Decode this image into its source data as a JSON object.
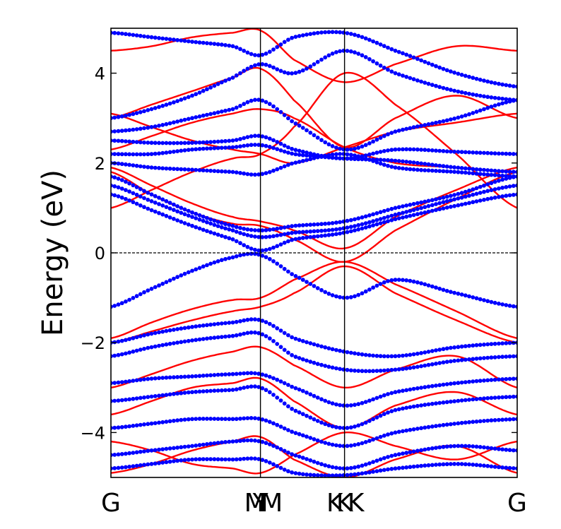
{
  "chart_data": {
    "type": "scatter",
    "title": "",
    "ylabel": "Energy (eV)",
    "xlabel": "",
    "ylim": [
      -5,
      5
    ],
    "xlim": [
      0,
      1
    ],
    "yticks": [
      -4,
      -2,
      0,
      2,
      4
    ],
    "ytick_labels": [
      "−4",
      "−2",
      "0",
      "2",
      "4"
    ],
    "fermi_level": 0,
    "kpath_labels": [
      {
        "text": "G",
        "x": 0.0
      },
      {
        "text": "M",
        "x": 0.355
      },
      {
        "text": "Y",
        "x": 0.368
      },
      {
        "text": "M",
        "x": 0.396
      },
      {
        "text": "K",
        "x": 0.551
      },
      {
        "text": "K",
        "x": 0.575
      },
      {
        "text": "K",
        "x": 0.603
      },
      {
        "text": "G",
        "x": 1.0
      }
    ],
    "high_symmetry_lines": [
      0.368,
      0.575
    ],
    "colors": {
      "series_red": "#ff0000",
      "series_blue": "#0000ff"
    },
    "series": [
      {
        "color": "#ff0000",
        "style": "line",
        "bands": [
          {
            "x": [
              0,
              0.1,
              0.2,
              0.3,
              0.368,
              0.45,
              0.575,
              0.7,
              0.85,
              1.0
            ],
            "y": [
              -1.9,
              -1.55,
              -1.25,
              -1.05,
              -1.0,
              -0.6,
              -0.2,
              -0.7,
              -1.3,
              -1.9
            ]
          },
          {
            "x": [
              0,
              0.1,
              0.2,
              0.3,
              0.368,
              0.45,
              0.575,
              0.7,
              0.85,
              1.0
            ],
            "y": [
              -2.0,
              -1.75,
              -1.5,
              -1.3,
              -1.2,
              -0.9,
              -0.3,
              -0.9,
              -1.5,
              -2.0
            ]
          },
          {
            "x": [
              0,
              0.1,
              0.2,
              0.3,
              0.368,
              0.45,
              0.575,
              0.7,
              0.85,
              1.0
            ],
            "y": [
              1.8,
              1.3,
              0.9,
              0.65,
              0.6,
              0.3,
              -0.2,
              0.5,
              1.2,
              1.8
            ]
          },
          {
            "x": [
              0,
              0.1,
              0.2,
              0.3,
              0.368,
              0.45,
              0.575,
              0.7,
              0.85,
              1.0
            ],
            "y": [
              1.9,
              1.5,
              1.1,
              0.8,
              0.7,
              0.5,
              0.1,
              0.8,
              1.4,
              1.9
            ]
          },
          {
            "x": [
              0,
              0.1,
              0.2,
              0.3,
              0.368,
              0.45,
              0.575,
              0.7,
              0.85,
              1.0
            ],
            "y": [
              3.1,
              2.8,
              2.5,
              2.3,
              2.2,
              2.0,
              2.35,
              2.7,
              2.9,
              3.1
            ]
          },
          {
            "x": [
              0,
              0.1,
              0.2,
              0.3,
              0.368,
              0.45,
              0.575,
              0.7,
              0.85,
              1.0
            ],
            "y": [
              3.0,
              3.3,
              3.6,
              3.9,
              4.1,
              3.4,
              2.35,
              3.0,
              3.5,
              3.0
            ]
          },
          {
            "x": [
              0,
              0.1,
              0.2,
              0.3,
              0.368,
              0.45,
              0.575,
              0.7,
              0.85,
              1.0
            ],
            "y": [
              4.5,
              4.6,
              4.8,
              4.9,
              4.95,
              4.3,
              3.8,
              4.2,
              4.6,
              4.5
            ]
          },
          {
            "x": [
              0,
              0.1,
              0.2,
              0.3,
              0.368,
              0.45,
              0.575,
              0.7,
              0.85,
              1.0
            ],
            "y": [
              1.0,
              1.4,
              1.8,
              2.1,
              2.2,
              2.8,
              4.0,
              3.3,
              2.2,
              1.0
            ]
          },
          {
            "x": [
              0,
              0.1,
              0.2,
              0.3,
              0.368,
              0.45,
              0.575,
              0.7,
              0.85,
              1.0
            ],
            "y": [
              -3.0,
              -2.7,
              -2.4,
              -2.2,
              -2.1,
              -2.5,
              -3.0,
              -2.6,
              -2.3,
              -3.0
            ]
          },
          {
            "x": [
              0,
              0.1,
              0.2,
              0.3,
              0.368,
              0.45,
              0.575,
              0.7,
              0.85,
              1.0
            ],
            "y": [
              -3.6,
              -3.3,
              -3.0,
              -2.9,
              -2.8,
              -3.3,
              -3.9,
              -3.4,
              -3.1,
              -3.6
            ]
          },
          {
            "x": [
              0,
              0.1,
              0.2,
              0.3,
              0.368,
              0.45,
              0.575,
              0.7,
              0.85,
              1.0
            ],
            "y": [
              -4.2,
              -4.4,
              -4.7,
              -4.8,
              -4.9,
              -4.5,
              -4.0,
              -4.3,
              -4.6,
              -4.2
            ]
          },
          {
            "x": [
              0,
              0.1,
              0.2,
              0.3,
              0.368,
              0.45,
              0.575,
              0.7,
              0.85,
              1.0
            ],
            "y": [
              -4.9,
              -4.7,
              -4.4,
              -4.2,
              -4.1,
              -4.6,
              -5.0,
              -4.6,
              -4.3,
              -4.9
            ]
          },
          {
            "x": [
              0,
              0.1,
              0.2,
              0.3,
              0.368,
              0.45,
              0.575,
              0.7,
              0.85,
              1.0
            ],
            "y": [
              2.3,
              2.6,
              2.9,
              3.1,
              3.2,
              3.0,
              2.35,
              2.0,
              1.9,
              1.8
            ]
          }
        ]
      },
      {
        "color": "#0000ff",
        "style": "markers",
        "bands": [
          {
            "x": [
              0,
              0.1,
              0.2,
              0.3,
              0.368,
              0.45,
              0.575,
              0.7,
              0.85,
              1.0
            ],
            "y": [
              1.7,
              1.3,
              0.9,
              0.6,
              0.5,
              0.6,
              0.7,
              1.0,
              1.3,
              1.7
            ]
          },
          {
            "x": [
              0,
              0.1,
              0.2,
              0.3,
              0.368,
              0.45,
              0.575,
              0.7,
              0.85,
              1.0
            ],
            "y": [
              1.5,
              1.15,
              0.8,
              0.5,
              0.35,
              0.45,
              0.55,
              0.85,
              1.2,
              1.5
            ]
          },
          {
            "x": [
              0,
              0.1,
              0.2,
              0.3,
              0.368,
              0.45,
              0.575,
              0.7,
              0.85,
              1.0
            ],
            "y": [
              1.3,
              0.95,
              0.6,
              0.3,
              0.05,
              0.3,
              0.45,
              0.75,
              1.05,
              1.3
            ]
          },
          {
            "x": [
              0,
              0.1,
              0.2,
              0.3,
              0.368,
              0.45,
              0.575,
              0.7,
              0.85,
              1.0
            ],
            "y": [
              2.0,
              1.9,
              1.85,
              1.8,
              1.75,
              2.0,
              2.2,
              1.9,
              1.8,
              1.7
            ]
          },
          {
            "x": [
              0,
              0.1,
              0.2,
              0.3,
              0.368,
              0.45,
              0.575,
              0.7,
              0.85,
              1.0
            ],
            "y": [
              2.2,
              2.2,
              2.3,
              2.35,
              2.4,
              2.2,
              2.1,
              2.05,
              1.9,
              1.8
            ]
          },
          {
            "x": [
              0,
              0.1,
              0.2,
              0.3,
              0.368,
              0.45,
              0.575,
              0.7,
              0.85,
              1.0
            ],
            "y": [
              2.5,
              2.45,
              2.45,
              2.5,
              2.6,
              2.3,
              2.1,
              2.3,
              2.25,
              2.2
            ]
          },
          {
            "x": [
              0,
              0.1,
              0.2,
              0.3,
              0.368,
              0.45,
              0.575,
              0.7,
              0.85,
              1.0
            ],
            "y": [
              2.7,
              2.8,
              3.0,
              3.2,
              3.4,
              2.9,
              2.3,
              2.7,
              3.0,
              3.4
            ]
          },
          {
            "x": [
              0,
              0.1,
              0.2,
              0.3,
              0.368,
              0.45,
              0.575,
              0.7,
              0.85,
              1.0
            ],
            "y": [
              3.0,
              3.2,
              3.5,
              3.9,
              4.2,
              4.0,
              4.5,
              4.0,
              3.6,
              3.4
            ]
          },
          {
            "x": [
              0,
              0.1,
              0.2,
              0.3,
              0.368,
              0.45,
              0.575,
              0.7,
              0.85,
              1.0
            ],
            "y": [
              4.9,
              4.8,
              4.7,
              4.6,
              4.4,
              4.8,
              4.9,
              4.5,
              4.0,
              3.7
            ]
          },
          {
            "x": [
              0,
              0.1,
              0.2,
              0.3,
              0.368,
              0.45,
              0.575,
              0.7,
              0.85,
              1.0
            ],
            "y": [
              -2.0,
              -1.8,
              -1.65,
              -1.55,
              -1.5,
              -1.9,
              -2.2,
              -2.3,
              -2.1,
              -2.0
            ]
          },
          {
            "x": [
              0,
              0.1,
              0.2,
              0.3,
              0.368,
              0.45,
              0.575,
              0.7,
              0.85,
              1.0
            ],
            "y": [
              -2.3,
              -2.1,
              -1.95,
              -1.85,
              -1.8,
              -2.3,
              -2.6,
              -2.6,
              -2.4,
              -2.3
            ]
          },
          {
            "x": [
              0,
              0.1,
              0.2,
              0.3,
              0.368,
              0.45,
              0.575,
              0.7,
              0.85,
              1.0
            ],
            "y": [
              -2.9,
              -2.8,
              -2.75,
              -2.7,
              -2.7,
              -3.0,
              -3.4,
              -3.1,
              -2.9,
              -2.8
            ]
          },
          {
            "x": [
              0,
              0.1,
              0.2,
              0.3,
              0.368,
              0.45,
              0.575,
              0.7,
              0.85,
              1.0
            ],
            "y": [
              -3.3,
              -3.2,
              -3.1,
              -3.05,
              -3.0,
              -3.5,
              -3.9,
              -3.5,
              -3.3,
              -3.2
            ]
          },
          {
            "x": [
              0,
              0.1,
              0.2,
              0.3,
              0.368,
              0.45,
              0.575,
              0.7,
              0.85,
              1.0
            ],
            "y": [
              -3.9,
              -3.8,
              -3.7,
              -3.7,
              -3.7,
              -4.0,
              -4.3,
              -4.0,
              -3.8,
              -3.7
            ]
          },
          {
            "x": [
              0,
              0.1,
              0.2,
              0.3,
              0.368,
              0.45,
              0.575,
              0.7,
              0.85,
              1.0
            ],
            "y": [
              -4.5,
              -4.4,
              -4.3,
              -4.2,
              -4.2,
              -4.5,
              -4.8,
              -4.5,
              -4.3,
              -4.4
            ]
          },
          {
            "x": [
              0,
              0.1,
              0.2,
              0.3,
              0.368,
              0.45,
              0.575,
              0.7,
              0.85,
              1.0
            ],
            "y": [
              -4.8,
              -4.7,
              -4.6,
              -4.6,
              -4.6,
              -4.9,
              -4.95,
              -4.8,
              -4.7,
              -4.8
            ]
          },
          {
            "x": [
              0,
              0.1,
              0.2,
              0.3,
              0.368,
              0.45,
              0.575,
              0.7,
              0.85,
              1.0
            ],
            "y": [
              -1.2,
              -0.8,
              -0.4,
              -0.1,
              -0.05,
              -0.5,
              -1.0,
              -0.6,
              -0.9,
              -1.2
            ]
          }
        ]
      }
    ]
  }
}
